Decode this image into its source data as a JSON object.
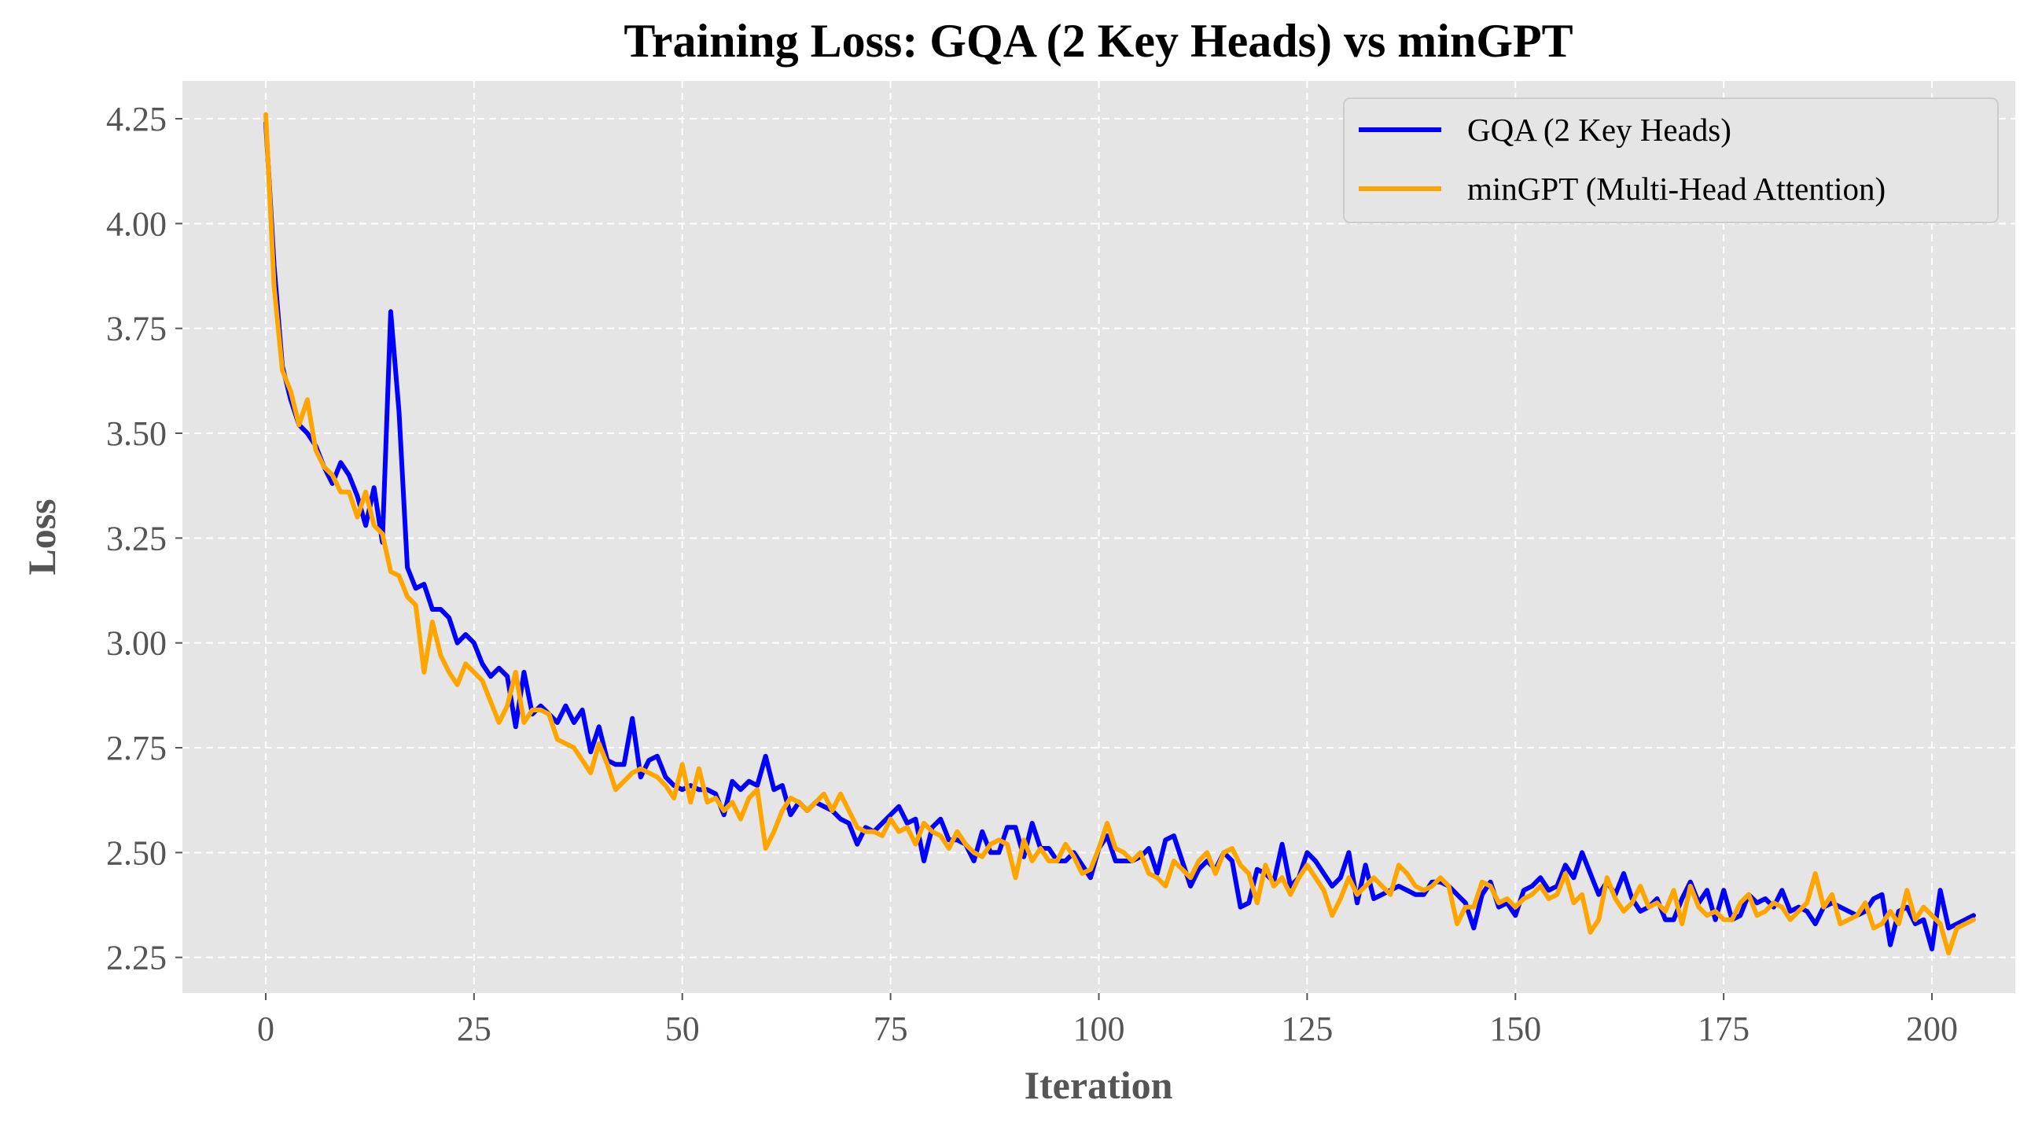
{
  "chart_data": {
    "type": "line",
    "title": "Training Loss: GQA (2 Key Heads) vs minGPT",
    "xlabel": "Iteration",
    "ylabel": "Loss",
    "xlim": [
      -10,
      210
    ],
    "ylim": [
      2.165,
      4.34
    ],
    "xticks": [
      0,
      25,
      50,
      75,
      100,
      125,
      150,
      175,
      200
    ],
    "xtick_labels": [
      "0",
      "25",
      "50",
      "75",
      "100",
      "125",
      "150",
      "175",
      "200"
    ],
    "yticks": [
      2.25,
      2.5,
      2.75,
      3.0,
      3.25,
      3.5,
      3.75,
      4.0,
      4.25
    ],
    "ytick_labels": [
      "2.25",
      "2.50",
      "2.75",
      "3.00",
      "3.25",
      "3.50",
      "3.75",
      "4.00",
      "4.25"
    ],
    "grid": true,
    "legend_position": "top-right",
    "background": "#e5e5e5",
    "series": [
      {
        "name": "GQA (2 Key Heads)",
        "color": "#0000ff",
        "values": [
          4.24,
          3.9,
          3.66,
          3.58,
          3.52,
          3.5,
          3.47,
          3.42,
          3.38,
          3.43,
          3.4,
          3.35,
          3.28,
          3.37,
          3.24,
          3.79,
          3.55,
          3.18,
          3.13,
          3.14,
          3.08,
          3.08,
          3.06,
          3.0,
          3.02,
          3.0,
          2.95,
          2.92,
          2.94,
          2.92,
          2.8,
          2.93,
          2.83,
          2.85,
          2.83,
          2.81,
          2.85,
          2.81,
          2.84,
          2.74,
          2.8,
          2.72,
          2.71,
          2.71,
          2.82,
          2.68,
          2.72,
          2.73,
          2.68,
          2.66,
          2.65,
          2.66,
          2.65,
          2.65,
          2.64,
          2.59,
          2.67,
          2.65,
          2.67,
          2.66,
          2.73,
          2.65,
          2.66,
          2.59,
          2.62,
          2.6,
          2.62,
          2.61,
          2.6,
          2.58,
          2.57,
          2.52,
          2.56,
          2.55,
          2.57,
          2.59,
          2.61,
          2.57,
          2.58,
          2.48,
          2.56,
          2.58,
          2.53,
          2.53,
          2.52,
          2.48,
          2.55,
          2.5,
          2.5,
          2.56,
          2.56,
          2.49,
          2.57,
          2.51,
          2.51,
          2.48,
          2.48,
          2.5,
          2.47,
          2.44,
          2.51,
          2.54,
          2.48,
          2.48,
          2.48,
          2.49,
          2.51,
          2.45,
          2.53,
          2.54,
          2.48,
          2.42,
          2.46,
          2.48,
          2.46,
          2.5,
          2.48,
          2.37,
          2.38,
          2.46,
          2.45,
          2.43,
          2.52,
          2.42,
          2.44,
          2.5,
          2.48,
          2.45,
          2.42,
          2.44,
          2.5,
          2.38,
          2.47,
          2.39,
          2.4,
          2.41,
          2.42,
          2.41,
          2.4,
          2.4,
          2.43,
          2.43,
          2.42,
          2.4,
          2.38,
          2.32,
          2.4,
          2.43,
          2.37,
          2.38,
          2.35,
          2.41,
          2.42,
          2.44,
          2.41,
          2.42,
          2.47,
          2.44,
          2.5,
          2.45,
          2.4,
          2.43,
          2.4,
          2.45,
          2.39,
          2.36,
          2.37,
          2.39,
          2.34,
          2.34,
          2.39,
          2.43,
          2.38,
          2.41,
          2.34,
          2.41,
          2.34,
          2.35,
          2.4,
          2.38,
          2.39,
          2.37,
          2.41,
          2.36,
          2.37,
          2.36,
          2.33,
          2.37,
          2.38,
          2.37,
          2.36,
          2.35,
          2.36,
          2.39,
          2.4,
          2.28,
          2.36,
          2.37,
          2.33,
          2.34,
          2.27,
          2.41,
          2.32,
          2.33,
          2.34,
          2.35
        ]
      },
      {
        "name": "minGPT (Multi-Head Attention)",
        "color": "#ffa500",
        "values": [
          4.26,
          3.85,
          3.65,
          3.6,
          3.52,
          3.58,
          3.46,
          3.42,
          3.4,
          3.36,
          3.36,
          3.3,
          3.36,
          3.28,
          3.26,
          3.17,
          3.16,
          3.11,
          3.09,
          2.93,
          3.05,
          2.97,
          2.93,
          2.9,
          2.95,
          2.93,
          2.91,
          2.86,
          2.81,
          2.85,
          2.93,
          2.81,
          2.84,
          2.84,
          2.83,
          2.77,
          2.76,
          2.75,
          2.72,
          2.69,
          2.76,
          2.71,
          2.65,
          2.67,
          2.69,
          2.7,
          2.69,
          2.68,
          2.66,
          2.63,
          2.71,
          2.62,
          2.7,
          2.62,
          2.63,
          2.6,
          2.62,
          2.58,
          2.63,
          2.65,
          2.51,
          2.55,
          2.6,
          2.63,
          2.62,
          2.6,
          2.62,
          2.64,
          2.6,
          2.64,
          2.6,
          2.56,
          2.55,
          2.55,
          2.54,
          2.58,
          2.55,
          2.56,
          2.52,
          2.57,
          2.55,
          2.54,
          2.51,
          2.55,
          2.52,
          2.5,
          2.49,
          2.52,
          2.53,
          2.52,
          2.44,
          2.53,
          2.48,
          2.51,
          2.48,
          2.48,
          2.52,
          2.49,
          2.45,
          2.46,
          2.51,
          2.57,
          2.51,
          2.5,
          2.48,
          2.5,
          2.45,
          2.44,
          2.42,
          2.48,
          2.46,
          2.44,
          2.48,
          2.5,
          2.45,
          2.5,
          2.51,
          2.47,
          2.45,
          2.38,
          2.47,
          2.42,
          2.44,
          2.4,
          2.44,
          2.47,
          2.44,
          2.41,
          2.35,
          2.39,
          2.44,
          2.4,
          2.42,
          2.44,
          2.42,
          2.4,
          2.47,
          2.45,
          2.42,
          2.41,
          2.42,
          2.44,
          2.42,
          2.33,
          2.37,
          2.37,
          2.43,
          2.42,
          2.38,
          2.39,
          2.37,
          2.39,
          2.4,
          2.42,
          2.39,
          2.4,
          2.45,
          2.38,
          2.4,
          2.31,
          2.34,
          2.44,
          2.39,
          2.36,
          2.38,
          2.42,
          2.37,
          2.38,
          2.36,
          2.41,
          2.33,
          2.42,
          2.37,
          2.35,
          2.36,
          2.34,
          2.34,
          2.38,
          2.4,
          2.35,
          2.36,
          2.38,
          2.37,
          2.34,
          2.36,
          2.38,
          2.45,
          2.37,
          2.4,
          2.33,
          2.34,
          2.35,
          2.38,
          2.32,
          2.33,
          2.36,
          2.33,
          2.41,
          2.34,
          2.37,
          2.35,
          2.33,
          2.26,
          2.32,
          2.33,
          2.34
        ]
      }
    ]
  }
}
